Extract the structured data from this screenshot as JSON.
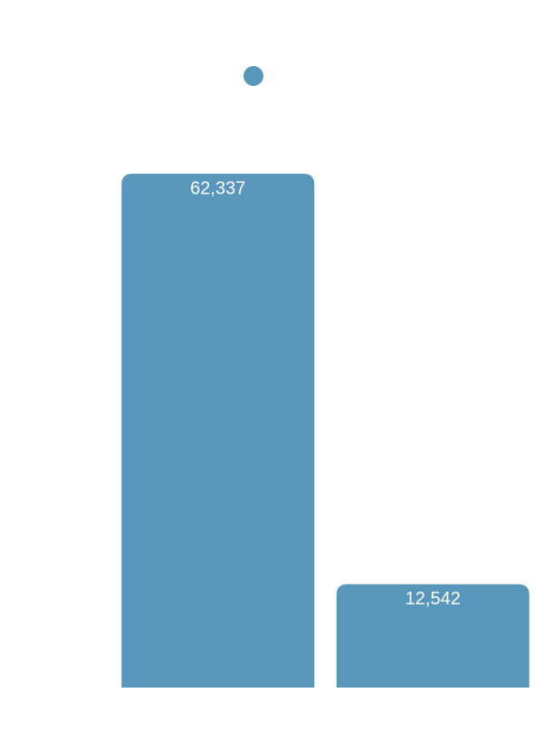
{
  "chart_data": {
    "type": "bar",
    "categories": [
      null,
      null
    ],
    "values": [
      62337,
      12542
    ],
    "value_labels": [
      "62,337",
      "12,542"
    ],
    "color": "#5996bb"
  }
}
